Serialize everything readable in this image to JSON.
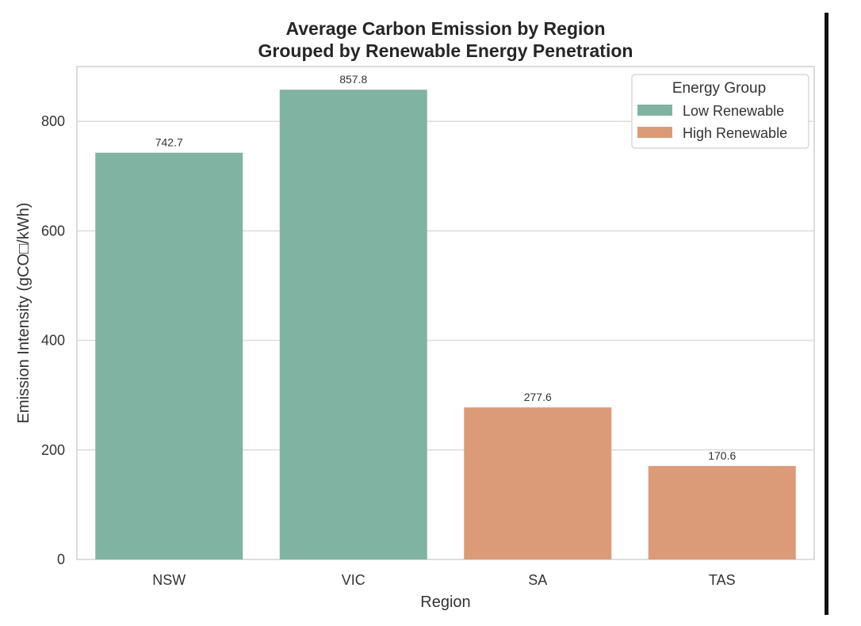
{
  "chart_data": {
    "type": "bar",
    "title": "Average Carbon Emission by Region",
    "subtitle": "Grouped by Renewable Energy Penetration",
    "xlabel": "Region",
    "ylabel": "Emission Intensity (gCO□/kWh)",
    "categories": [
      "NSW",
      "VIC",
      "SA",
      "TAS"
    ],
    "values": [
      742.7,
      857.8,
      277.6,
      170.6
    ],
    "value_labels": [
      "742.7",
      "857.8",
      "277.6",
      "170.6"
    ],
    "groups": [
      "Low Renewable",
      "Low Renewable",
      "High Renewable",
      "High Renewable"
    ],
    "ylim": [
      0,
      900
    ],
    "yticks": [
      0,
      200,
      400,
      600,
      800
    ],
    "grid": true,
    "legend": {
      "title": "Energy Group",
      "placement": "top-right",
      "entries": [
        {
          "name": "Low Renewable",
          "color": "#81b3a2"
        },
        {
          "name": "High Renewable",
          "color": "#db9b79"
        }
      ]
    }
  }
}
